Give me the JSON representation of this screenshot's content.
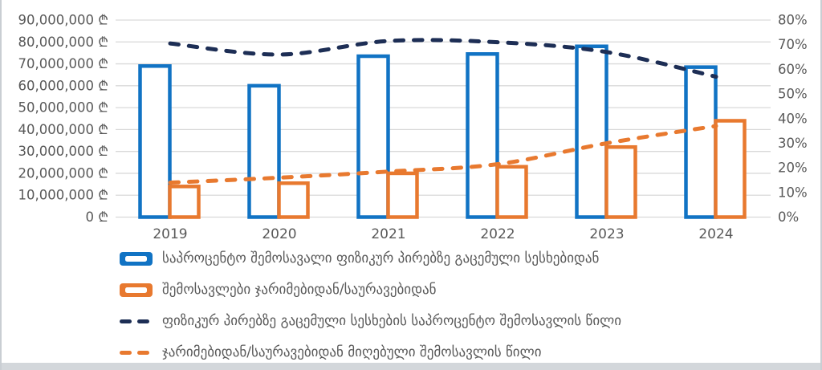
{
  "colors": {
    "blue": "#1173c4",
    "orange": "#e8792f",
    "navy": "#1d2e55",
    "axis_text": "#595959",
    "gridline": "#d9d9d9",
    "chart_background": "#ffffff",
    "window_band": "#d3d7db"
  },
  "chart_data": {
    "type": "combo-bar-line",
    "title": "",
    "categories": [
      "2019",
      "2020",
      "2021",
      "2022",
      "2023",
      "2024"
    ],
    "series": [
      {
        "name": "საპროცენტო შემოსავალი ფიზიკურ პირებზე გაცემული სესხებიდან",
        "type": "bar",
        "axis": "left",
        "color": "blue",
        "values": [
          69000000,
          60000000,
          73500000,
          74500000,
          78000000,
          68500000
        ]
      },
      {
        "name": "შემოსავლები ჯარიმებიდან/საურავებიდან",
        "type": "bar",
        "axis": "left",
        "color": "orange",
        "values": [
          14000000,
          15500000,
          20000000,
          23000000,
          32000000,
          44000000
        ]
      },
      {
        "name": "ფიზიკურ პირებზე გაცემული სესხების საპროცენტო შემოსავლის წილი",
        "type": "line",
        "dashed": true,
        "smooth": true,
        "axis": "right",
        "color": "navy",
        "values": [
          70.5,
          66,
          71.5,
          71,
          67,
          57
        ]
      },
      {
        "name": "ჯარიმებიდან/საურავებიდან მიღებული შემოსავლის წილი",
        "type": "line",
        "dashed": true,
        "smooth": true,
        "axis": "right",
        "color": "orange",
        "values": [
          14,
          16,
          18.5,
          21.5,
          30,
          37
        ]
      }
    ],
    "left_axis": {
      "min": 0,
      "max": 90000000,
      "step": 10000000,
      "unit": "₾",
      "tick_labels": [
        "90,000,000 ₾",
        "80,000,000 ₾",
        "70,000,000 ₾",
        "60,000,000 ₾",
        "50,000,000 ₾",
        "40,000,000 ₾",
        "30,000,000 ₾",
        "20,000,000 ₾",
        "10,000,000 ₾",
        "0 ₾"
      ]
    },
    "right_axis": {
      "min": 0,
      "max": 80,
      "step": 10,
      "unit": "%",
      "tick_labels": [
        "80%",
        "70%",
        "60%",
        "50%",
        "40%",
        "30%",
        "20%",
        "10%",
        "0%"
      ]
    },
    "gridlines": true,
    "legend_position": "bottom-left"
  }
}
